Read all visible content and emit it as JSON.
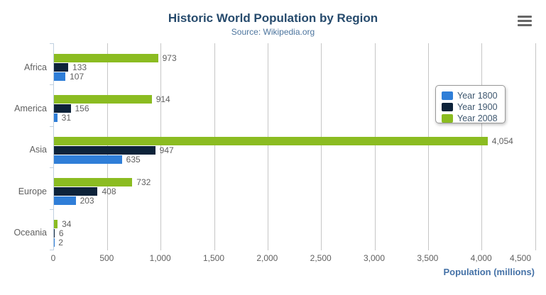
{
  "chart_data": {
    "type": "bar",
    "title": "Historic World Population by Region",
    "subtitle": "Source: Wikipedia.org",
    "categories": [
      "Africa",
      "America",
      "Asia",
      "Europe",
      "Oceania"
    ],
    "series": [
      {
        "name": "Year 1800",
        "color": "#2f7ed8",
        "values": [
          107,
          31,
          635,
          203,
          2
        ]
      },
      {
        "name": "Year 1900",
        "color": "#0d233a",
        "values": [
          133,
          156,
          947,
          408,
          6
        ]
      },
      {
        "name": "Year 2008",
        "color": "#8bbc21",
        "values": [
          973,
          914,
          4054,
          732,
          34
        ]
      }
    ],
    "bar_order_top_to_bottom": [
      "Year 2008",
      "Year 1900",
      "Year 1800"
    ],
    "xlabel": "Population (millions)",
    "value_axis": {
      "min": 0,
      "max": 4500,
      "tick_interval": 500,
      "tick_labels": [
        "0",
        "500",
        "1,000",
        "1,500",
        "2,000",
        "2,500",
        "3,000",
        "3,500",
        "4,000",
        "4,500"
      ]
    },
    "data_labels_visible": true,
    "grid": true,
    "legend": {
      "position": "middle-right",
      "items": [
        "Year 1800",
        "Year 1900",
        "Year 2008"
      ]
    },
    "theme": {
      "title_color": "#274b6d",
      "subtitle_color": "#4d759e",
      "axis_title_color": "#4572a7",
      "label_color": "#606060",
      "grid_color": "#c6c6c6",
      "axis_line_color": "#c0d0e0",
      "legend_border_color": "#999999",
      "legend_text_color": "#3e576f",
      "menu_icon_color": "#666666",
      "background": "#ffffff"
    }
  },
  "toolbar": {
    "context_menu_icon": "hamburger-icon"
  }
}
